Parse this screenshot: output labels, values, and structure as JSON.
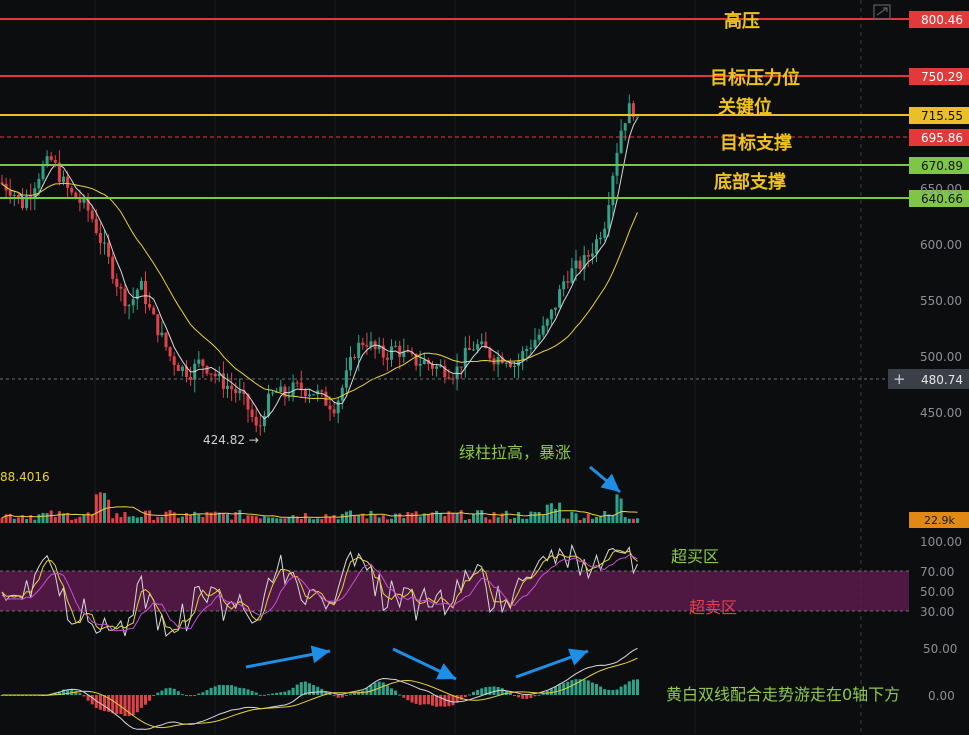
{
  "levels": [
    {
      "value": 800.46,
      "value_label": "800.46",
      "color": "#e23a3a",
      "style": "solid",
      "name": "高压",
      "name_color": "#f0c21c"
    },
    {
      "value": 750.29,
      "value_label": "750.29",
      "color": "#e23a3a",
      "style": "solid",
      "name": "目标压力位",
      "name_color": "#f0c21c"
    },
    {
      "value": 715.55,
      "value_label": "715.55",
      "color": "#e9c02a",
      "style": "solid",
      "name": "关键位",
      "name_color": "#f0c21c"
    },
    {
      "value": 695.86,
      "value_label": "695.86",
      "color": "#e23a3a",
      "style": "dashed",
      "name": "",
      "name_color": ""
    },
    {
      "value": 670.89,
      "value_label": "670.89",
      "color": "#7fc646",
      "style": "solid",
      "name": "目标支撑",
      "name_color": "#f0c21c"
    },
    {
      "value": 640.66,
      "value_label": "640.66",
      "color": "#7fc646",
      "style": "solid",
      "name": "底部支撑",
      "name_color": "#f0c21c"
    }
  ],
  "crosshair": {
    "value": 480.74,
    "label": "480.74"
  },
  "low_marker": {
    "label": "424.82 →",
    "value": 424.82
  },
  "volume": {
    "ma_label": "88.4016",
    "last_label": "22.9k",
    "annotation": "绿柱拉高，暴涨"
  },
  "oscillator": {
    "overbought_label": "超买区",
    "oversold_label": "超卖区",
    "band_high": 70,
    "band_low": 30
  },
  "macd": {
    "annotation": "黄白双线配合走势游走在0轴下方"
  },
  "colors": {
    "up": "#2ea38a",
    "down": "#e0424a",
    "ma_fast": "#d8d8d8",
    "ma_slow": "#e9d23a",
    "osc_band": "#5a1b4c",
    "arrow": "#1e8fe6"
  },
  "chart_data": {
    "type": "candlestick",
    "y_ticks": [
      "650.00",
      "600.00",
      "550.00",
      "500.00",
      "450.00"
    ],
    "osc_ticks": [
      "100.00",
      "70.00",
      "50.00",
      "30.00"
    ],
    "macd_ticks": [
      "50.00",
      "0.00"
    ],
    "close_path": [
      [
        0,
        655
      ],
      [
        12,
        648
      ],
      [
        22,
        635
      ],
      [
        32,
        650
      ],
      [
        42,
        668
      ],
      [
        52,
        675
      ],
      [
        60,
        660
      ],
      [
        70,
        645
      ],
      [
        80,
        638
      ],
      [
        90,
        628
      ],
      [
        100,
        605
      ],
      [
        110,
        582
      ],
      [
        120,
        558
      ],
      [
        130,
        545
      ],
      [
        140,
        565
      ],
      [
        150,
        540
      ],
      [
        160,
        520
      ],
      [
        170,
        500
      ],
      [
        180,
        490
      ],
      [
        190,
        485
      ],
      [
        200,
        495
      ],
      [
        210,
        488
      ],
      [
        220,
        478
      ],
      [
        230,
        472
      ],
      [
        240,
        465
      ],
      [
        250,
        450
      ],
      [
        258,
        430
      ],
      [
        265,
        455
      ],
      [
        275,
        468
      ],
      [
        285,
        465
      ],
      [
        295,
        472
      ],
      [
        305,
        470
      ],
      [
        315,
        468
      ],
      [
        325,
        460
      ],
      [
        335,
        455
      ],
      [
        345,
        478
      ],
      [
        355,
        505
      ],
      [
        365,
        515
      ],
      [
        375,
        505
      ],
      [
        385,
        500
      ],
      [
        395,
        508
      ],
      [
        405,
        500
      ],
      [
        415,
        495
      ],
      [
        425,
        495
      ],
      [
        435,
        490
      ],
      [
        445,
        488
      ],
      [
        455,
        485
      ],
      [
        465,
        500
      ],
      [
        475,
        510
      ],
      [
        485,
        505
      ],
      [
        495,
        498
      ],
      [
        505,
        500
      ],
      [
        515,
        492
      ],
      [
        525,
        505
      ],
      [
        535,
        515
      ],
      [
        545,
        525
      ],
      [
        555,
        545
      ],
      [
        565,
        570
      ],
      [
        575,
        578
      ],
      [
        585,
        585
      ],
      [
        595,
        600
      ],
      [
        605,
        620
      ],
      [
        612,
        660
      ],
      [
        620,
        700
      ],
      [
        626,
        715
      ],
      [
        632,
        725
      ],
      [
        638,
        705
      ],
      [
        642,
        700
      ]
    ]
  }
}
